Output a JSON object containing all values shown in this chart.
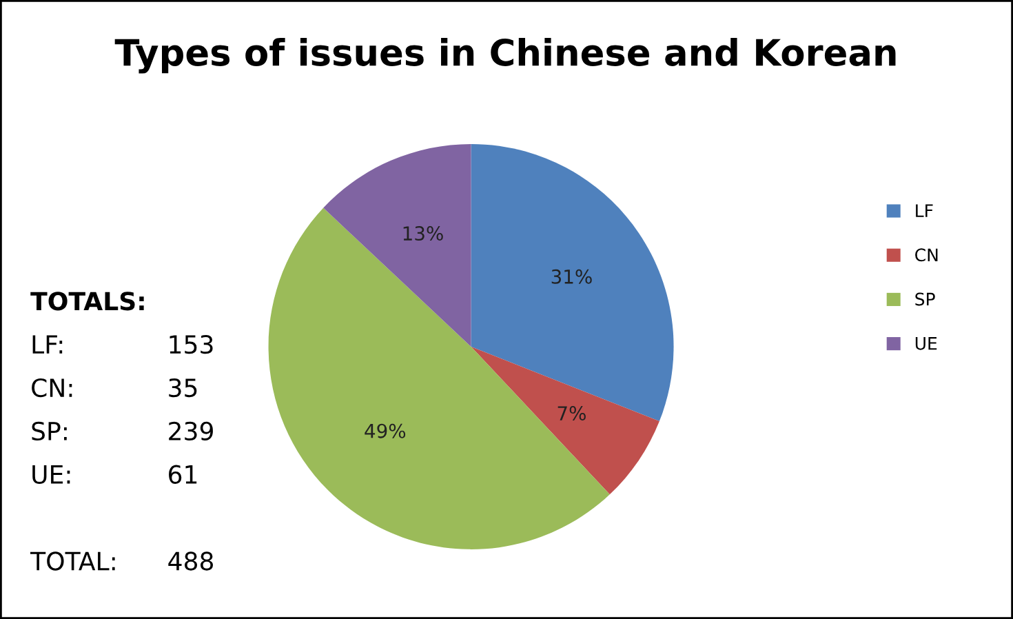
{
  "chart_data": {
    "type": "pie",
    "title": "Types of issues in Chinese and Korean",
    "categories": [
      "LF",
      "CN",
      "SP",
      "UE"
    ],
    "values": [
      31,
      7,
      49,
      13
    ],
    "value_labels": [
      "31%",
      "7%",
      "49%",
      "13%"
    ],
    "colors": [
      "#4f81bd",
      "#c0504d",
      "#9bbb59",
      "#8064a2"
    ],
    "legend": "right",
    "annotations": [
      "TOTALS:",
      "LF: 153",
      "CN: 35",
      "SP: 239",
      "UE: 61",
      "TOTAL: 488"
    ]
  }
}
